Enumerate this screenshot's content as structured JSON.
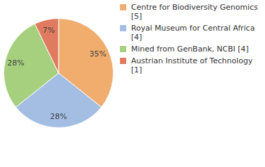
{
  "chart_data": {
    "type": "pie",
    "categories": [
      "Centre for Biodiversity Genomics [5]",
      "Royal Museum for Central Africa [4]",
      "Mined from GenBank, NCBI [4]",
      "Austrian Institute of Technology [1]"
    ],
    "values": [
      35,
      28,
      28,
      7
    ],
    "value_labels": [
      "35%",
      "28%",
      "28%",
      "7%"
    ],
    "colors": [
      "#f0ad6e",
      "#a3bde3",
      "#a6cf7e",
      "#e07b60"
    ],
    "data_labels": true,
    "legend": "upper right"
  }
}
